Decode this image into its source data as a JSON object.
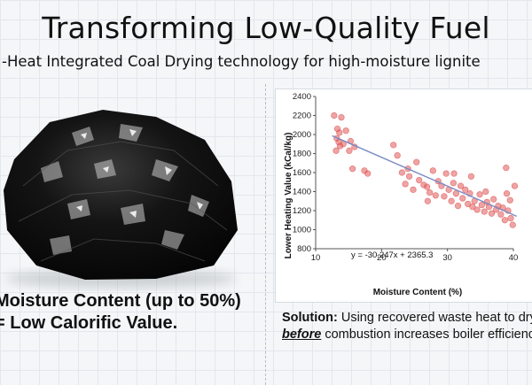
{
  "header": {
    "title": "Transforming Low-Quality Fuel",
    "subtitle": "-Heat Integrated Coal Drying technology for high-moisture lignite"
  },
  "left_panel": {
    "caption_line1": "Moisture Content (up to 50%)",
    "caption_line2": "= Low Calorific Value."
  },
  "right_panel": {
    "caption_bold": "Solution:",
    "caption_rest": " Using recovered waste heat to dry",
    "caption_underlined": "before",
    "caption_line2_rest": " combustion increases boiler efficiency"
  },
  "chart_data": {
    "type": "scatter",
    "xlabel": "Moisture Content (%)",
    "ylabel": "Lower Heating Value (kCal/kg)",
    "xlim": [
      10,
      40
    ],
    "ylim": [
      800,
      2400
    ],
    "xticks": [
      10,
      20,
      30,
      40
    ],
    "yticks": [
      800,
      1000,
      1200,
      1400,
      1600,
      1800,
      2000,
      2200,
      2400
    ],
    "trendline": {
      "slope": -30.247,
      "intercept": 2365.3
    },
    "equation_label": "y = -30.247x + 2365.3",
    "point_color": "#e05a5a",
    "line_color": "#7a8bc4",
    "points": [
      [
        12.8,
        2200
      ],
      [
        13.3,
        2060
      ],
      [
        13.6,
        2020
      ],
      [
        13.9,
        2180
      ],
      [
        13.2,
        1960
      ],
      [
        13.5,
        1920
      ],
      [
        13.1,
        1830
      ],
      [
        13.7,
        1880
      ],
      [
        14.2,
        1900
      ],
      [
        14.6,
        2040
      ],
      [
        15.1,
        1830
      ],
      [
        15.3,
        1930
      ],
      [
        15.9,
        1870
      ],
      [
        15.6,
        1640
      ],
      [
        17.4,
        1620
      ],
      [
        17.9,
        1590
      ],
      [
        21.8,
        1890
      ],
      [
        22.4,
        1780
      ],
      [
        23.1,
        1600
      ],
      [
        23.6,
        1480
      ],
      [
        24.2,
        1560
      ],
      [
        24.8,
        1420
      ],
      [
        25.3,
        1710
      ],
      [
        25.7,
        1520
      ],
      [
        26.4,
        1470
      ],
      [
        26.9,
        1450
      ],
      [
        27.3,
        1390
      ],
      [
        27.8,
        1620
      ],
      [
        28.2,
        1360
      ],
      [
        28.6,
        1510
      ],
      [
        29.1,
        1460
      ],
      [
        29.5,
        1350
      ],
      [
        29.8,
        1590
      ],
      [
        30.2,
        1420
      ],
      [
        30.6,
        1300
      ],
      [
        30.9,
        1490
      ],
      [
        31.3,
        1380
      ],
      [
        31.6,
        1250
      ],
      [
        32.0,
        1460
      ],
      [
        32.3,
        1330
      ],
      [
        32.7,
        1420
      ],
      [
        33.1,
        1270
      ],
      [
        33.4,
        1380
      ],
      [
        33.8,
        1240
      ],
      [
        34.1,
        1300
      ],
      [
        34.5,
        1210
      ],
      [
        34.9,
        1370
      ],
      [
        35.2,
        1260
      ],
      [
        35.6,
        1190
      ],
      [
        36.0,
        1290
      ],
      [
        36.3,
        1240
      ],
      [
        36.7,
        1170
      ],
      [
        37.0,
        1320
      ],
      [
        37.4,
        1210
      ],
      [
        37.7,
        1250
      ],
      [
        38.1,
        1160
      ],
      [
        38.4,
        1230
      ],
      [
        38.7,
        1100
      ],
      [
        39.0,
        1380
      ],
      [
        39.2,
        1200
      ],
      [
        39.6,
        1120
      ],
      [
        39.9,
        1050
      ],
      [
        40.2,
        1460
      ],
      [
        38.9,
        1650
      ],
      [
        33.6,
        1560
      ],
      [
        27.0,
        1300
      ],
      [
        24.0,
        1640
      ],
      [
        35.8,
        1400
      ],
      [
        31.0,
        1590
      ],
      [
        39.5,
        1310
      ]
    ]
  }
}
